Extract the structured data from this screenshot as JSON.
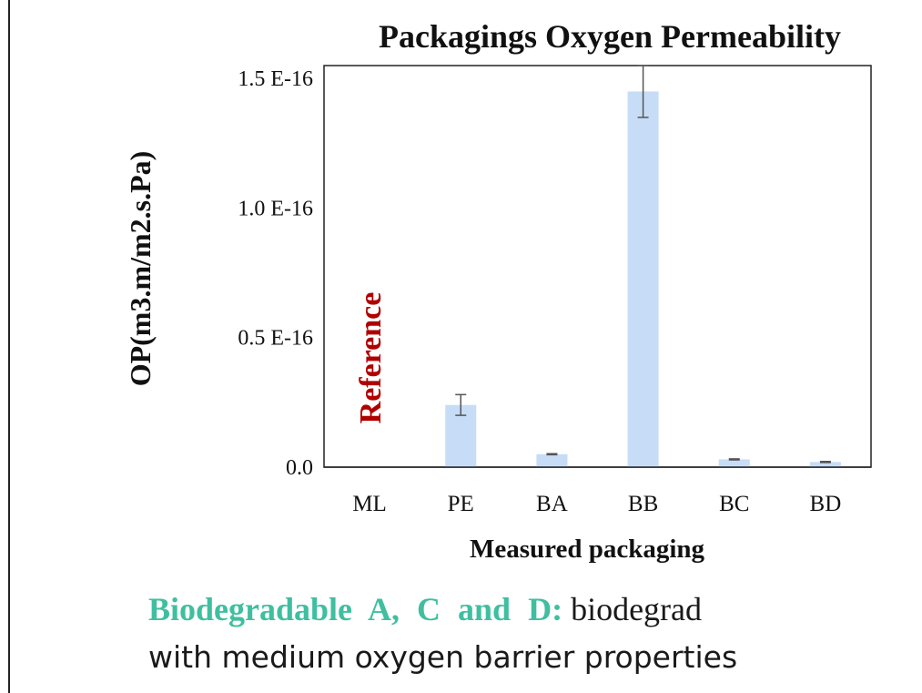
{
  "chart_data": {
    "type": "bar",
    "title": "Packagings Oxygen Permeability",
    "xlabel": "Measured packaging",
    "ylabel": "OP(m3.m/m2.s.Pa)",
    "categories": [
      "ML",
      "PE",
      "BA",
      "BB",
      "BC",
      "BD"
    ],
    "values": [
      0.0,
      0.24,
      0.05,
      1.45,
      0.03,
      0.02
    ],
    "error": [
      0.0,
      0.04,
      0.002,
      0.1,
      0.002,
      0.002
    ],
    "value_scale": "E-16",
    "ylim": [
      0,
      1.55
    ],
    "yticks": [
      0.0,
      0.5,
      1.0,
      1.5
    ],
    "ytick_labels": [
      "0.0",
      "0.5 E-16",
      "1.0 E-16",
      "1.5 E-16"
    ],
    "annotation": "Reference",
    "grid": false,
    "colors": {
      "bar": "#c6dcf7",
      "error": "#555555",
      "annotation": "#b00000",
      "axis": "#222222"
    }
  },
  "caption": {
    "highlight": "Biodegradable A, C and D:",
    "rest": " biodegrad",
    "line2": "with medium oxygen barrier properties",
    "highlight_color": "#3fbf9f"
  }
}
